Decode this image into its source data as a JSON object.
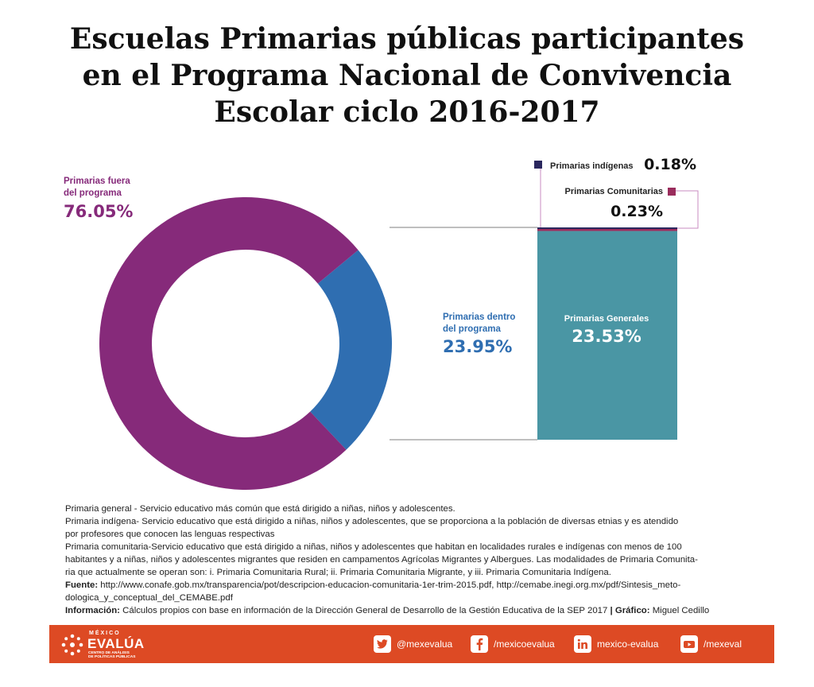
{
  "title": {
    "line1": "Escuelas Primarias públicas participantes",
    "line2": "en el Programa Nacional de Convivencia",
    "line3": "Escolar ciclo 2016-2017"
  },
  "chart_data": {
    "type": "donut-with-breakdown-bar",
    "donut": [
      {
        "name": "Primarias fuera del programa",
        "label_line1": "Primarias fuera",
        "label_line2": "del programa",
        "value": 76.05,
        "value_label": "76.05%",
        "color": "#862a7a"
      },
      {
        "name": "Primarias dentro del programa",
        "label_line1": "Primarias dentro",
        "label_line2": "del programa",
        "value": 23.95,
        "value_label": "23.95%",
        "color": "#2f6eb1"
      }
    ],
    "breakdown_total": 23.95,
    "breakdown": [
      {
        "name": "Primarias indígenas",
        "value": 0.18,
        "value_label": "0.18%",
        "color": "#2a275e"
      },
      {
        "name": "Primarias Comunitarias",
        "value": 0.23,
        "value_label": "0.23%",
        "color": "#9a2c5c"
      },
      {
        "name": "Primarias Generales",
        "value": 23.53,
        "value_label": "23.53%",
        "color": "#4a96a4"
      }
    ]
  },
  "footnotes": {
    "general": "Primaria general - Servicio educativo más común que está dirigido a niñas, niños y adolescentes.",
    "indigena_1": "Primaria indígena- Servicio educativo  que está dirigido a niñas, niños y adolescentes, que se proporciona a  la población de diversas etnias y es atendido",
    "indigena_2": "por profesores que conocen las lenguas respectivas",
    "comunitaria_1": "Primaria comunitaria-Servicio educativo que está dirigido a niñas, niños y adolescentes que habitan en localidades rurales e indígenas con menos de 100",
    "comunitaria_2": "habitantes y a niñas, niños y adolescentes migrantes que residen en campamentos Agrícolas Migrantes y Albergues. Las modalidades de Primaria Comunita-",
    "comunitaria_3": "ria que actualmente se operan son: i. Primaria Comunitaria Rural; ii. Primaria Comunitaria Migrante, y iii. Primaria Comunitaria Indígena.",
    "fuente_label": "Fuente:",
    "fuente_1": " http://www.conafe.gob.mx/transparencia/pot/descripcion-educacion-comunitaria-1er-trim-2015.pdf, http://cemabe.inegi.org.mx/pdf/Sintesis_meto-",
    "fuente_2": "dologica_y_conceptual_del_CEMABE.pdf",
    "info_label": "Información:",
    "info_text": " Cálculos propios con base en información de la Dirección General de Desarrollo de la Gestión Educativa de la SEP 2017 ",
    "sep": "|",
    "grafico_label": " Gráfico:",
    "grafico_text": " Miguel Cedillo"
  },
  "footer": {
    "logo_top": "MÉXICO",
    "logo_main": "EVALÚA",
    "logo_sub1": "CENTRO DE ANÁLISIS",
    "logo_sub2": "DE POLÍTICAS PÚBLICAS",
    "twitter": "@mexevalua",
    "facebook": "/mexicoevalua",
    "linkedin": "mexico-evalua",
    "youtube": "/mexeval"
  }
}
